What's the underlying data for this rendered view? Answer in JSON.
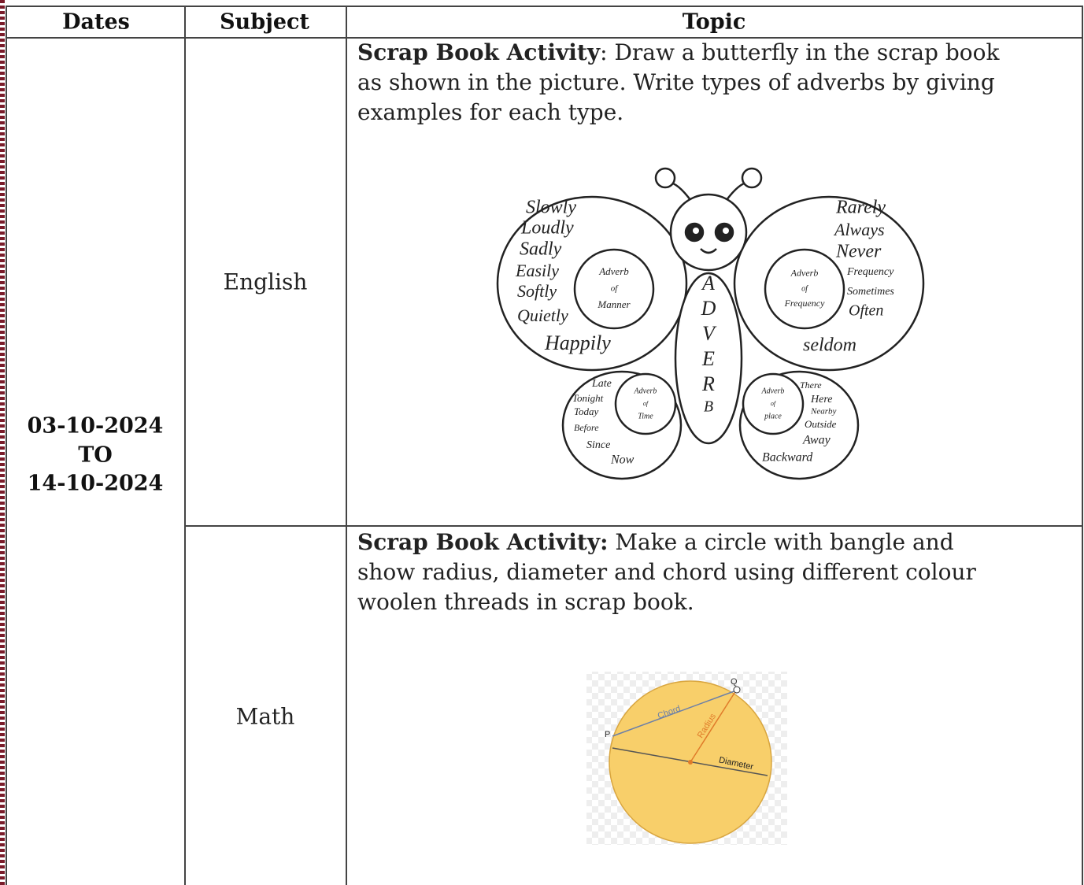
{
  "table": {
    "headers": [
      "Dates",
      "Subject",
      "Topic"
    ],
    "dates": {
      "from": "03-10-2024",
      "to_word": "TO",
      "to": "14-10-2024"
    },
    "rows": [
      {
        "subject": "English",
        "activity_label": "Scrap Book Activity",
        "lines": [
          ": Draw a butterfly in the scrap book",
          "as shown in the picture. Write types of adverbs by giving",
          "examples for each type."
        ]
      },
      {
        "subject": "Math",
        "activity_label": "Scrap Book Activity:",
        "lines": [
          " Make a circle with bangle and",
          "show radius, diameter and chord using different colour",
          "woolen threads in scrap book."
        ]
      }
    ]
  },
  "butterfly": {
    "body_letters": [
      "A",
      "D",
      "V",
      "E",
      "R",
      "B"
    ],
    "manner": {
      "circle": [
        "Adverb",
        "of",
        "Manner"
      ],
      "words": [
        "Slowly",
        "Loudly",
        "Sadly",
        "Easily",
        "Softly",
        "Quietly",
        "Happily"
      ]
    },
    "frequency": {
      "circle": [
        "Adverb",
        "of",
        "Frequency"
      ],
      "words": [
        "Rarely",
        "Always",
        "Never",
        "Frequency",
        "Sometimes",
        "Often",
        "seldom"
      ]
    },
    "time": {
      "circle": [
        "Adverb",
        "of",
        "Time"
      ],
      "words": [
        "Late",
        "Tonight",
        "Today",
        "Before",
        "Since",
        "Now"
      ]
    },
    "place": {
      "circle": [
        "Adverb",
        "of",
        "place"
      ],
      "words": [
        "There",
        "Here",
        "Nearby",
        "Outside",
        "Away",
        "Backward"
      ]
    }
  },
  "circle_figure": {
    "chord": "Chord",
    "radius": "Radius",
    "diameter": "Diameter",
    "point_p": "P",
    "point_q": "Q"
  }
}
